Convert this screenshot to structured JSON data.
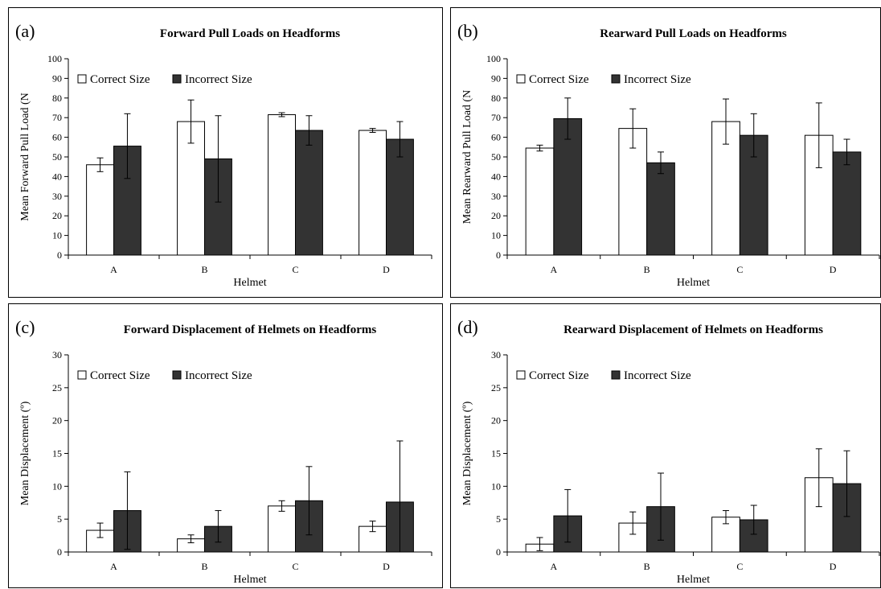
{
  "chart_data": [
    {
      "type": "bar",
      "panel_label": "(a)",
      "title": "Forward Pull Loads on Headforms",
      "xlabel": "Helmet",
      "ylabel": "Mean Forward Pull Load (N",
      "categories": [
        "A",
        "B",
        "C",
        "D"
      ],
      "ylim": [
        0,
        100
      ],
      "yticks": [
        "0",
        "10",
        "20",
        "30",
        "40",
        "50",
        "60",
        "70",
        "80",
        "90",
        "100"
      ],
      "legend_position": "top-left",
      "series": [
        {
          "name": "Correct Size",
          "color": "#ffffff",
          "values": [
            46,
            68,
            71.5,
            63.5
          ],
          "error": [
            3.5,
            11,
            1,
            1
          ]
        },
        {
          "name": "Incorrect Size",
          "color": "#333333",
          "values": [
            55.5,
            49,
            63.5,
            59
          ],
          "error": [
            16.5,
            22,
            7.5,
            9
          ]
        }
      ]
    },
    {
      "type": "bar",
      "panel_label": "(b)",
      "title": "Rearward Pull Loads on Headforms",
      "xlabel": "Helmet",
      "ylabel": "Mean Rearward Pull Load (N",
      "categories": [
        "A",
        "B",
        "C",
        "D"
      ],
      "ylim": [
        0,
        100
      ],
      "yticks": [
        "0",
        "10",
        "20",
        "30",
        "40",
        "50",
        "60",
        "70",
        "80",
        "90",
        "100"
      ],
      "legend_position": "top-left",
      "series": [
        {
          "name": "Correct Size",
          "color": "#ffffff",
          "values": [
            54.5,
            64.5,
            68,
            61
          ],
          "error": [
            1.5,
            10,
            11.5,
            16.5
          ]
        },
        {
          "name": "Incorrect Size",
          "color": "#333333",
          "values": [
            69.5,
            47,
            61,
            52.5
          ],
          "error": [
            10.5,
            5.5,
            11,
            6.5
          ]
        }
      ]
    },
    {
      "type": "bar",
      "panel_label": "(c)",
      "title": "Forward Displacement of Helmets on Headforms",
      "xlabel": "Helmet",
      "ylabel": "Mean Displacement (º)",
      "categories": [
        "A",
        "B",
        "C",
        "D"
      ],
      "ylim": [
        0,
        30
      ],
      "yticks": [
        "0",
        "5",
        "10",
        "15",
        "20",
        "25",
        "30"
      ],
      "legend_position": "top-left",
      "series": [
        {
          "name": "Correct Size",
          "color": "#ffffff",
          "values": [
            3.3,
            2.0,
            7.0,
            3.9
          ],
          "error": [
            1.1,
            0.6,
            0.8,
            0.8
          ]
        },
        {
          "name": "Incorrect Size",
          "color": "#333333",
          "values": [
            6.3,
            3.9,
            7.8,
            7.6
          ],
          "error": [
            5.9,
            2.4,
            5.2,
            9.3
          ]
        }
      ]
    },
    {
      "type": "bar",
      "panel_label": "(d)",
      "title": "Rearward Displacement of Helmets on Headforms",
      "xlabel": "Helmet",
      "ylabel": "Mean Displacement (º)",
      "categories": [
        "A",
        "B",
        "C",
        "D"
      ],
      "ylim": [
        0,
        30
      ],
      "yticks": [
        "0",
        "5",
        "10",
        "15",
        "20",
        "25",
        "30"
      ],
      "legend_position": "top-left",
      "series": [
        {
          "name": "Correct Size",
          "color": "#ffffff",
          "values": [
            1.2,
            4.4,
            5.3,
            11.3
          ],
          "error": [
            1.0,
            1.7,
            1.0,
            4.4
          ]
        },
        {
          "name": "Incorrect Size",
          "color": "#333333",
          "values": [
            5.5,
            6.9,
            4.9,
            10.4
          ],
          "error": [
            4.0,
            5.1,
            2.2,
            5.0
          ]
        }
      ]
    }
  ]
}
